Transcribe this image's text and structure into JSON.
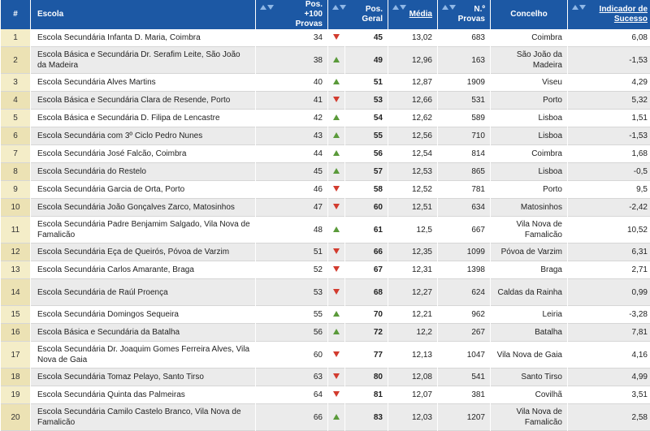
{
  "colors": {
    "header_bg": "#1c58a4",
    "rank_bg": "#f4edc8",
    "arrow_up": "#5a9a3a",
    "arrow_down": "#d23b2e"
  },
  "header": {
    "rank": "#",
    "school": "Escola",
    "pos100": "Pos. +100 Provas",
    "posg": "Pos. Geral",
    "media": "Média",
    "nprovas": "N.º Provas",
    "concelho": "Concelho",
    "indicador": "Indicador de Sucesso"
  },
  "rows": [
    {
      "rank": "1",
      "school": "Escola Secundária Infanta D. Maria, Coimbra",
      "pos100": "34",
      "trend": "down",
      "posg": "45",
      "media": "13,02",
      "nprovas": "683",
      "concelho": "Coimbra",
      "ind": "6,08"
    },
    {
      "rank": "2",
      "school": "Escola Básica e Secundária Dr. Serafim Leite, São João da Madeira",
      "pos100": "38",
      "trend": "up",
      "posg": "49",
      "media": "12,96",
      "nprovas": "163",
      "concelho": "São João da Madeira",
      "ind": "-1,53"
    },
    {
      "rank": "3",
      "school": "Escola Secundária Alves Martins",
      "pos100": "40",
      "trend": "up",
      "posg": "51",
      "media": "12,87",
      "nprovas": "1909",
      "concelho": "Viseu",
      "ind": "4,29"
    },
    {
      "rank": "4",
      "school": "Escola Básica e Secundária Clara de Resende, Porto",
      "pos100": "41",
      "trend": "down",
      "posg": "53",
      "media": "12,66",
      "nprovas": "531",
      "concelho": "Porto",
      "ind": "5,32"
    },
    {
      "rank": "5",
      "school": "Escola Básica e Secundária D. Filipa de Lencastre",
      "pos100": "42",
      "trend": "up",
      "posg": "54",
      "media": "12,62",
      "nprovas": "589",
      "concelho": "Lisboa",
      "ind": "1,51"
    },
    {
      "rank": "6",
      "school": "Escola Secundária com 3º Ciclo Pedro Nunes",
      "pos100": "43",
      "trend": "up",
      "posg": "55",
      "media": "12,56",
      "nprovas": "710",
      "concelho": "Lisboa",
      "ind": "-1,53"
    },
    {
      "rank": "7",
      "school": "Escola Secundária José Falcão, Coimbra",
      "pos100": "44",
      "trend": "up",
      "posg": "56",
      "media": "12,54",
      "nprovas": "814",
      "concelho": "Coimbra",
      "ind": "1,68"
    },
    {
      "rank": "8",
      "school": "Escola Secundária do Restelo",
      "pos100": "45",
      "trend": "up",
      "posg": "57",
      "media": "12,53",
      "nprovas": "865",
      "concelho": "Lisboa",
      "ind": "-0,5"
    },
    {
      "rank": "9",
      "school": "Escola Secundária Garcia de Orta, Porto",
      "pos100": "46",
      "trend": "down",
      "posg": "58",
      "media": "12,52",
      "nprovas": "781",
      "concelho": "Porto",
      "ind": "9,5"
    },
    {
      "rank": "10",
      "school": "Escola Secundária João Gonçalves Zarco, Matosinhos",
      "pos100": "47",
      "trend": "down",
      "posg": "60",
      "media": "12,51",
      "nprovas": "634",
      "concelho": "Matosinhos",
      "ind": "-2,42"
    },
    {
      "rank": "11",
      "school": "Escola Secundária Padre Benjamim Salgado, Vila Nova de Famalicão",
      "pos100": "48",
      "trend": "up",
      "posg": "61",
      "media": "12,5",
      "nprovas": "667",
      "concelho": "Vila Nova de Famalicão",
      "ind": "10,52"
    },
    {
      "rank": "12",
      "school": "Escola Secundária Eça de Queirós, Póvoa de Varzim",
      "pos100": "51",
      "trend": "down",
      "posg": "66",
      "media": "12,35",
      "nprovas": "1099",
      "concelho": "Póvoa de Varzim",
      "ind": "6,31"
    },
    {
      "rank": "13",
      "school": "Escola Secundária Carlos Amarante, Braga",
      "pos100": "52",
      "trend": "down",
      "posg": "67",
      "media": "12,31",
      "nprovas": "1398",
      "concelho": "Braga",
      "ind": "2,71"
    },
    {
      "rank": "14",
      "school": "Escola Secundária de Raúl Proença",
      "pos100": "53",
      "trend": "down",
      "posg": "68",
      "media": "12,27",
      "nprovas": "624",
      "concelho": "Caldas da Rainha",
      "ind": "0,99"
    },
    {
      "rank": "15",
      "school": "Escola Secundária Domingos Sequeira",
      "pos100": "55",
      "trend": "up",
      "posg": "70",
      "media": "12,21",
      "nprovas": "962",
      "concelho": "Leiria",
      "ind": "-3,28"
    },
    {
      "rank": "16",
      "school": "Escola Básica e Secundária da Batalha",
      "pos100": "56",
      "trend": "up",
      "posg": "72",
      "media": "12,2",
      "nprovas": "267",
      "concelho": "Batalha",
      "ind": "7,81"
    },
    {
      "rank": "17",
      "school": "Escola Secundária Dr. Joaquim Gomes Ferreira Alves, Vila Nova de Gaia",
      "pos100": "60",
      "trend": "down",
      "posg": "77",
      "media": "12,13",
      "nprovas": "1047",
      "concelho": "Vila Nova de Gaia",
      "ind": "4,16"
    },
    {
      "rank": "18",
      "school": "Escola Secundária Tomaz Pelayo, Santo Tirso",
      "pos100": "63",
      "trend": "down",
      "posg": "80",
      "media": "12,08",
      "nprovas": "541",
      "concelho": "Santo Tirso",
      "ind": "4,99"
    },
    {
      "rank": "19",
      "school": "Escola Secundária Quinta das Palmeiras",
      "pos100": "64",
      "trend": "down",
      "posg": "81",
      "media": "12,07",
      "nprovas": "381",
      "concelho": "Covilhã",
      "ind": "3,51"
    },
    {
      "rank": "20",
      "school": "Escola Secundária Camilo Castelo Branco, Vila Nova de Famalicão",
      "pos100": "66",
      "trend": "up",
      "posg": "83",
      "media": "12,03",
      "nprovas": "1207",
      "concelho": "Vila Nova de Famalicão",
      "ind": "2,58"
    }
  ]
}
